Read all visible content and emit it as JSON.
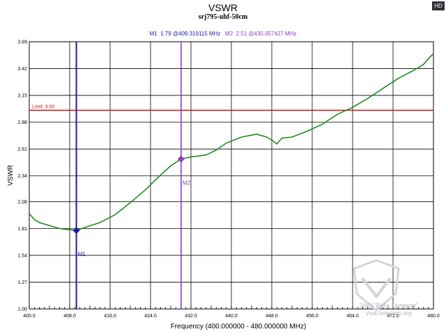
{
  "badge": "HD",
  "title": "VSWR",
  "subtitle": "srj795-uhf-50cm",
  "markers": {
    "m1_text": "M1  1.79 @409.319115 MHz",
    "m2_text": "M2  2.51 @430.057427 MHz",
    "m1_label": "M1",
    "m2_label": "M2"
  },
  "watermark": {
    "line1": "ЗАО \"Вига-Телеком\"",
    "line2": "viva-telecom.org"
  },
  "chart_data": {
    "type": "line",
    "title": "VSWR",
    "subtitle": "srj795-uhf-50cm",
    "xlabel": "Frequency (400.000000 - 480.000000 MHz)",
    "ylabel": "VSWR",
    "xlim": [
      400,
      480
    ],
    "ylim": [
      1.0,
      3.69
    ],
    "x_ticks": [
      "400.0",
      "408.0",
      "416.0",
      "424.0",
      "432.0",
      "440.0",
      "448.0",
      "456.0",
      "464.0",
      "472.0",
      "480.0"
    ],
    "x_tick_values": [
      400,
      408,
      416,
      424,
      432,
      440,
      448,
      456,
      464,
      472,
      480
    ],
    "y_ticks": [
      "1.00",
      "1.27",
      "1.54",
      "1.81",
      "2.08",
      "2.34",
      "2.61",
      "2.88",
      "3.15",
      "3.42",
      "3.69"
    ],
    "y_tick_values": [
      1.0,
      1.27,
      1.54,
      1.81,
      2.08,
      2.34,
      2.61,
      2.88,
      3.15,
      3.42,
      3.69
    ],
    "grid": true,
    "limit": {
      "value": 3.0,
      "label": "Limit: 3.00",
      "color": "#c81414"
    },
    "series": [
      {
        "color": "#1f8a1f",
        "x": [
          400,
          401,
          402,
          404,
          406,
          407.5,
          409.3,
          411,
          414,
          417,
          420,
          423,
          426,
          428,
          430.06,
          432,
          435,
          437,
          439,
          442,
          445,
          447,
          448,
          449,
          450,
          452,
          455,
          458,
          461,
          464,
          467,
          470,
          473,
          476,
          478,
          479,
          480
        ],
        "y": [
          1.96,
          1.9,
          1.87,
          1.84,
          1.81,
          1.8,
          1.79,
          1.82,
          1.87,
          1.95,
          2.07,
          2.2,
          2.35,
          2.44,
          2.51,
          2.53,
          2.55,
          2.6,
          2.67,
          2.73,
          2.76,
          2.73,
          2.7,
          2.66,
          2.72,
          2.73,
          2.79,
          2.86,
          2.96,
          3.03,
          3.12,
          3.22,
          3.32,
          3.4,
          3.46,
          3.52,
          3.57
        ]
      }
    ],
    "markers": [
      {
        "name": "M1",
        "x": 409.319115,
        "y": 1.79,
        "color": "#1a1aa8"
      },
      {
        "name": "M2",
        "x": 430.057427,
        "y": 2.51,
        "color": "#8a3cc4"
      }
    ]
  }
}
